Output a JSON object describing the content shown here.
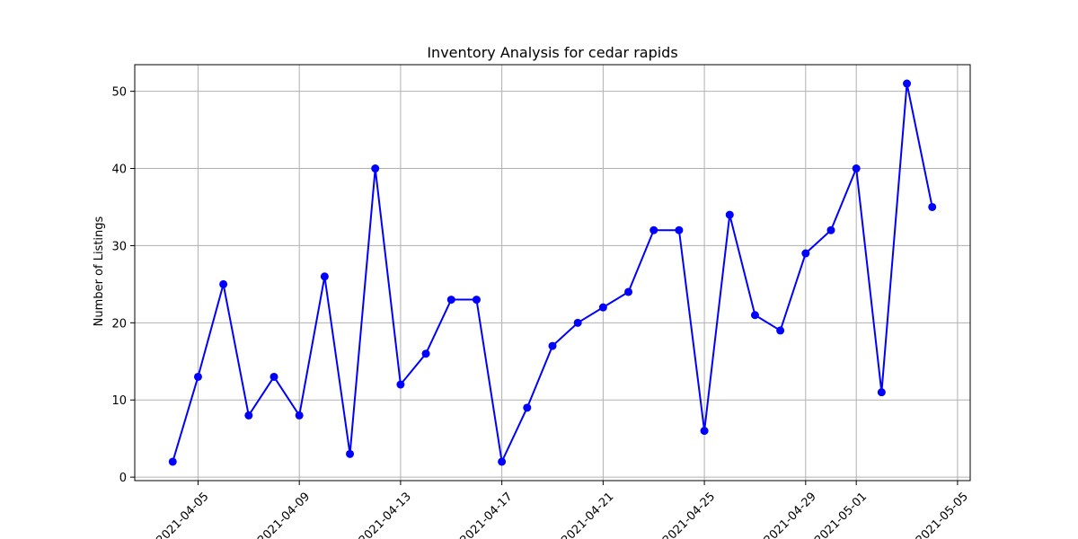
{
  "chart_data": {
    "type": "line",
    "title": "Inventory Analysis for cedar rapids",
    "xlabel": "",
    "ylabel": "Number of Listings",
    "x": [
      "2021-04-04",
      "2021-04-05",
      "2021-04-06",
      "2021-04-07",
      "2021-04-08",
      "2021-04-09",
      "2021-04-10",
      "2021-04-11",
      "2021-04-12",
      "2021-04-13",
      "2021-04-14",
      "2021-04-15",
      "2021-04-16",
      "2021-04-17",
      "2021-04-18",
      "2021-04-19",
      "2021-04-20",
      "2021-04-21",
      "2021-04-22",
      "2021-04-23",
      "2021-04-24",
      "2021-04-25",
      "2021-04-26",
      "2021-04-27",
      "2021-04-28",
      "2021-04-29",
      "2021-04-30",
      "2021-05-01",
      "2021-05-02",
      "2021-05-03",
      "2021-05-04"
    ],
    "series": [
      {
        "values": [
          2,
          13,
          25,
          8,
          13,
          8,
          26,
          3,
          40,
          12,
          16,
          23,
          23,
          2,
          9,
          17,
          20,
          22,
          24,
          32,
          32,
          6,
          34,
          21,
          19,
          29,
          32,
          40,
          11,
          51,
          35
        ],
        "color": "#0000ff",
        "marker": "circle"
      }
    ],
    "xlim": [
      "2021-04-02T12:00",
      "2021-05-05T12:00"
    ],
    "ylim": [
      -0.45,
      53.45
    ],
    "xticks": [
      "2021-04-05",
      "2021-04-09",
      "2021-04-13",
      "2021-04-17",
      "2021-04-21",
      "2021-04-25",
      "2021-04-29",
      "2021-05-01",
      "2021-05-05"
    ],
    "yticks": [
      0,
      10,
      20,
      30,
      40,
      50
    ],
    "xtick_rotation": 45,
    "grid": true,
    "grid_color": "#b0b0b0"
  }
}
